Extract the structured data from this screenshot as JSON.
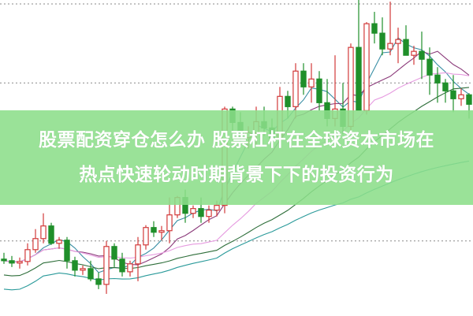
{
  "headline": {
    "line1": "股票配资穿仓怎么办 股票杠杆在全球资本市场在",
    "line2": "热点快速轮动时期背景下下的投资行为"
  },
  "colors": {
    "up": "#d23a3a",
    "down": "#1f8f2a",
    "banner": "#8cde8a",
    "grid": "#888888",
    "ma": [
      "#3a8fa5",
      "#8b3a7a",
      "#e69be0",
      "#2e6e3a",
      "#2a9a9a"
    ]
  },
  "chart_data": {
    "type": "candlestick",
    "ylim": [
      0,
      400
    ],
    "grid": "horizontal dotted",
    "grid_levels": [
      95,
      295,
      395
    ],
    "moving_average_periods": [
      5,
      10,
      20,
      30,
      60
    ],
    "candles_ohlc": [
      [
        72,
        80,
        66,
        70
      ],
      [
        70,
        76,
        62,
        67
      ],
      [
        67,
        74,
        60,
        69
      ],
      [
        69,
        92,
        64,
        84
      ],
      [
        84,
        110,
        80,
        98
      ],
      [
        98,
        130,
        92,
        114
      ],
      [
        114,
        118,
        90,
        92
      ],
      [
        92,
        100,
        85,
        96
      ],
      [
        96,
        100,
        60,
        70
      ],
      [
        70,
        75,
        50,
        58
      ],
      [
        58,
        64,
        52,
        60
      ],
      [
        60,
        70,
        44,
        47
      ],
      [
        47,
        55,
        34,
        40
      ],
      [
        40,
        95,
        28,
        88
      ],
      [
        88,
        92,
        62,
        72
      ],
      [
        72,
        80,
        50,
        56
      ],
      [
        56,
        70,
        50,
        66
      ],
      [
        66,
        100,
        44,
        90
      ],
      [
        90,
        115,
        84,
        112
      ],
      [
        112,
        120,
        100,
        106
      ],
      [
        106,
        114,
        96,
        108
      ],
      [
        108,
        150,
        92,
        128
      ],
      [
        128,
        152,
        124,
        150
      ],
      [
        150,
        160,
        118,
        130
      ],
      [
        130,
        140,
        124,
        136
      ],
      [
        136,
        150,
        118,
        126
      ],
      [
        126,
        140,
        118,
        134
      ],
      [
        134,
        146,
        126,
        140
      ],
      [
        140,
        265,
        130,
        262
      ],
      [
        262,
        265,
        232,
        245
      ],
      [
        245,
        258,
        220,
        226
      ],
      [
        226,
        240,
        212,
        232
      ],
      [
        232,
        265,
        215,
        246
      ],
      [
        246,
        265,
        228,
        238
      ],
      [
        238,
        250,
        215,
        225
      ],
      [
        225,
        290,
        218,
        278
      ],
      [
        278,
        285,
        250,
        265
      ],
      [
        265,
        320,
        250,
        310
      ],
      [
        310,
        320,
        280,
        290
      ],
      [
        290,
        320,
        270,
        300
      ],
      [
        300,
        310,
        260,
        270
      ],
      [
        270,
        300,
        240,
        250
      ],
      [
        250,
        330,
        240,
        262
      ],
      [
        262,
        295,
        230,
        240
      ],
      [
        240,
        345,
        232,
        340
      ],
      [
        340,
        400,
        260,
        260
      ],
      [
        260,
        372,
        255,
        370
      ],
      [
        370,
        385,
        345,
        358
      ],
      [
        358,
        378,
        330,
        338
      ],
      [
        338,
        398,
        330,
        345
      ],
      [
        345,
        365,
        320,
        350
      ],
      [
        350,
        368,
        330,
        330
      ],
      [
        330,
        342,
        318,
        335
      ],
      [
        335,
        360,
        300,
        325
      ],
      [
        325,
        340,
        280,
        305
      ],
      [
        305,
        315,
        270,
        295
      ],
      [
        295,
        300,
        270,
        285
      ],
      [
        285,
        305,
        258,
        275
      ],
      [
        275,
        288,
        266,
        280
      ],
      [
        280,
        282,
        250,
        268
      ]
    ]
  }
}
